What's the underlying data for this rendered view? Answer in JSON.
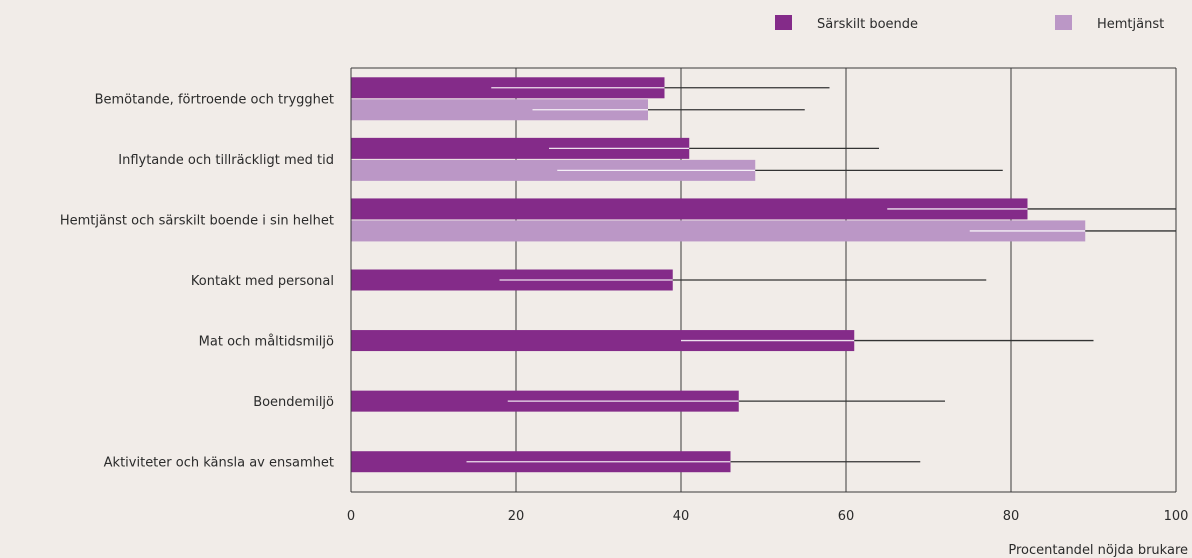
{
  "chart_data": {
    "type": "bar",
    "orientation": "horizontal",
    "title": "",
    "xlabel": "Procentandel nöjda brukare",
    "ylabel": "",
    "xlim": [
      0,
      100
    ],
    "xticks": [
      "0",
      "20",
      "40",
      "60",
      "80",
      "100"
    ],
    "grid": "vertical",
    "legend_position": "top-right",
    "categories": [
      "Bemötande, förtroende och trygghet",
      "Inflytande och tillräckligt med tid",
      "Hemtjänst och särskilt boende i sin helhet",
      "Kontakt med personal",
      "Mat och måltidsmiljö",
      "Boendemiljö",
      "Aktiviteter och känsla av ensamhet"
    ],
    "series": [
      {
        "name": "Särskilt boende",
        "color": "#842b89",
        "values": [
          38,
          41,
          82,
          39,
          61,
          47,
          46
        ],
        "range_low": [
          17,
          24,
          65,
          18,
          40,
          19,
          14
        ],
        "range_high": [
          58,
          64,
          100,
          77,
          90,
          72,
          69
        ]
      },
      {
        "name": "Hemtjänst",
        "color": "#bb97c6",
        "values": [
          36,
          49,
          89,
          null,
          null,
          null,
          null
        ],
        "range_low": [
          22,
          25,
          75,
          null,
          null,
          null,
          null
        ],
        "range_high": [
          55,
          79,
          100,
          null,
          null,
          null,
          null
        ]
      }
    ]
  }
}
